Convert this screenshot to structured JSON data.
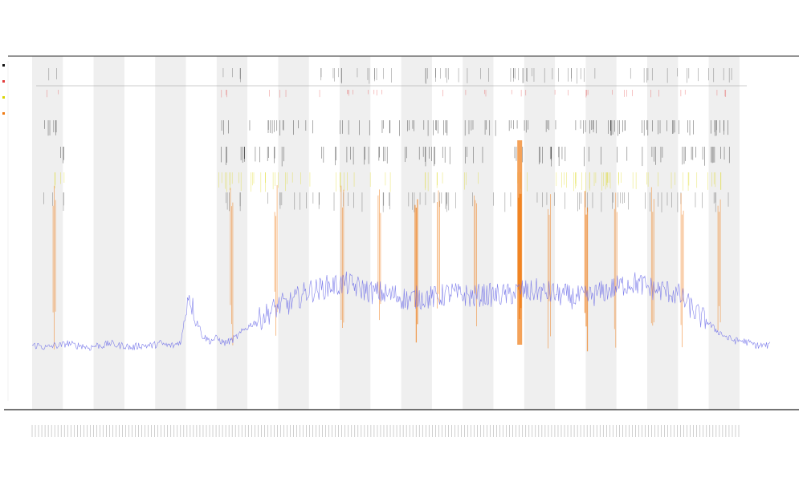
{
  "title": {
    "line1": "",
    "line2": "",
    "line3": ""
  },
  "colors": {
    "band": "#efefef",
    "signal": "#6a6ae8",
    "tick_black": "#111111",
    "tick_red": "#e23b3b",
    "tick_yellow": "#d9d400",
    "tick_orange": "#ef7a12",
    "axis": "#222222",
    "guide": "#9a9a9a"
  },
  "legend": [
    {
      "label": "",
      "color": "#111111"
    },
    {
      "label": "",
      "color": "#e23b3b"
    },
    {
      "label": "",
      "color": "#d9d400"
    },
    {
      "label": "",
      "color": "#ef7a12"
    }
  ],
  "chart_data": {
    "type": "line",
    "title": "",
    "xlabel": "",
    "ylabel": "",
    "grid": false,
    "shaded_bands": 12,
    "series": [
      {
        "values": [
          10,
          10,
          9,
          10,
          10,
          11,
          10,
          10,
          9,
          10,
          10,
          11,
          10,
          10,
          9,
          10,
          10,
          10,
          11,
          10,
          10,
          12,
          32,
          22,
          14,
          12,
          13,
          11,
          12,
          14,
          17,
          19,
          21,
          23,
          25,
          27,
          27,
          29,
          31,
          33,
          33,
          34,
          35,
          35,
          36,
          35,
          34,
          33,
          32,
          32,
          31,
          31,
          30,
          29,
          30,
          30,
          30,
          30,
          31,
          32,
          31,
          31,
          30,
          31,
          31,
          31,
          31,
          31,
          32,
          33,
          32,
          33,
          32,
          32,
          31,
          31,
          30,
          30,
          30,
          31,
          32,
          33,
          34,
          35,
          36,
          36,
          35,
          34,
          33,
          33,
          32,
          31,
          28,
          25,
          22,
          20,
          17,
          15,
          13,
          12,
          12,
          11,
          10,
          10,
          10
        ]
      }
    ],
    "event_rows": [
      {
        "color": "#111111",
        "intensity": "sparse"
      },
      {
        "color": "#e23b3b",
        "intensity": "sparse"
      },
      {
        "color": "#111111",
        "intensity": "medium"
      },
      {
        "color": "#111111",
        "intensity": "medium"
      },
      {
        "color": "#d9d400",
        "intensity": "medium"
      },
      {
        "color": "#111111",
        "intensity": "dense"
      },
      {
        "color": "#ef7a12",
        "intensity": "dense"
      }
    ],
    "peak_positions": [
      0.03,
      0.27,
      0.33,
      0.42,
      0.47,
      0.52,
      0.55,
      0.6,
      0.66,
      0.7,
      0.75,
      0.79,
      0.84,
      0.88,
      0.93
    ]
  }
}
